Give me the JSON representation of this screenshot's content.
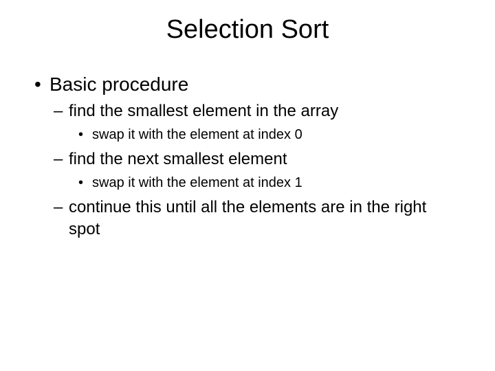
{
  "title": "Selection Sort",
  "bullets": {
    "b1": "Basic procedure",
    "b1_1": "find the smallest element in the array",
    "b1_1_1": "swap it with the element at index 0",
    "b1_2": "find the next smallest element",
    "b1_2_1": "swap it with the element at index 1",
    "b1_3": "continue this until all the elements are in the right spot"
  },
  "style": {
    "background_color": "#ffffff",
    "text_color": "#000000",
    "title_fontsize": 38,
    "l1_fontsize": 28,
    "l2_fontsize": 24,
    "l3_fontsize": 20,
    "font_family": "Arial"
  }
}
